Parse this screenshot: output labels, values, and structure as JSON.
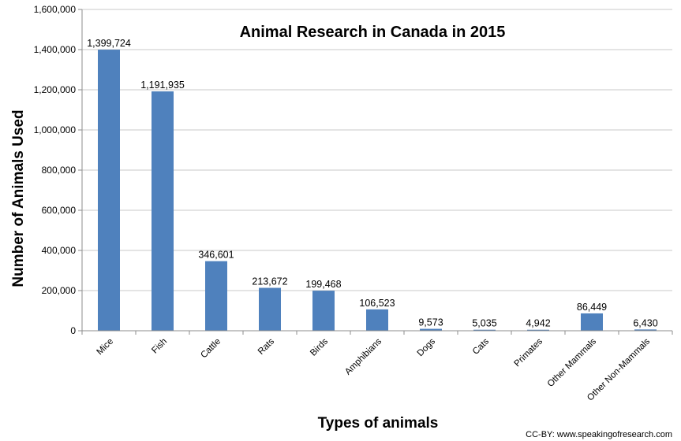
{
  "chart_data": {
    "type": "bar",
    "title": "Animal Research  in Canada  in 2015",
    "xlabel": "Types of animals",
    "ylabel": "Number of Animals Used",
    "categories": [
      "Mice",
      "Fish",
      "Cattle",
      "Rats",
      "Birds",
      "Amphibians",
      "Dogs",
      "Cats",
      "Primates",
      "Other Mammals",
      "Other Non-Mammals"
    ],
    "values": [
      1399724,
      1191935,
      346601,
      213672,
      199468,
      106523,
      9573,
      5035,
      4942,
      86449,
      6430
    ],
    "data_labels": [
      "1,399,724",
      "1,191,935",
      "346,601",
      "213,672",
      "199,468",
      "106,523",
      "9,573",
      "5,035",
      "4,942",
      "86,449",
      "6,430"
    ],
    "ylim": [
      0,
      1600000
    ],
    "yticks": [
      0,
      200000,
      400000,
      600000,
      800000,
      1000000,
      1200000,
      1400000,
      1600000
    ],
    "ytick_labels": [
      "0",
      "200,000",
      "400,000",
      "600,000",
      "800,000",
      "1,000,000",
      "1,200,000",
      "1,400,000",
      "1,600,000"
    ],
    "grid": true,
    "bar_color": "#4f81bd",
    "credit": "CC-BY: www.speakingofresearch.com"
  }
}
